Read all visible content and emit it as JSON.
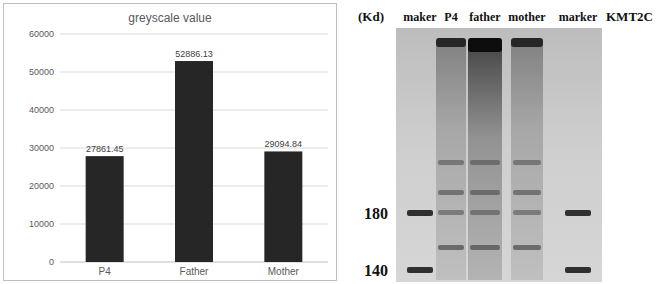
{
  "chart_data": {
    "type": "bar",
    "title": "greyscale value",
    "categories": [
      "P4",
      "Father",
      "Mother"
    ],
    "values": [
      27861.45,
      52886.13,
      29094.84
    ],
    "color": "#262626",
    "ylim": [
      0,
      60000
    ],
    "yticks": [
      0,
      10000,
      20000,
      30000,
      40000,
      50000,
      60000
    ],
    "grid": true,
    "data_labels": true
  },
  "blot": {
    "unit_label": "(Kd)",
    "lanes": [
      "maker",
      "P4",
      "father",
      "mother",
      "marker"
    ],
    "target_label": "KMT2C",
    "mw_markers": [
      180,
      140
    ]
  }
}
